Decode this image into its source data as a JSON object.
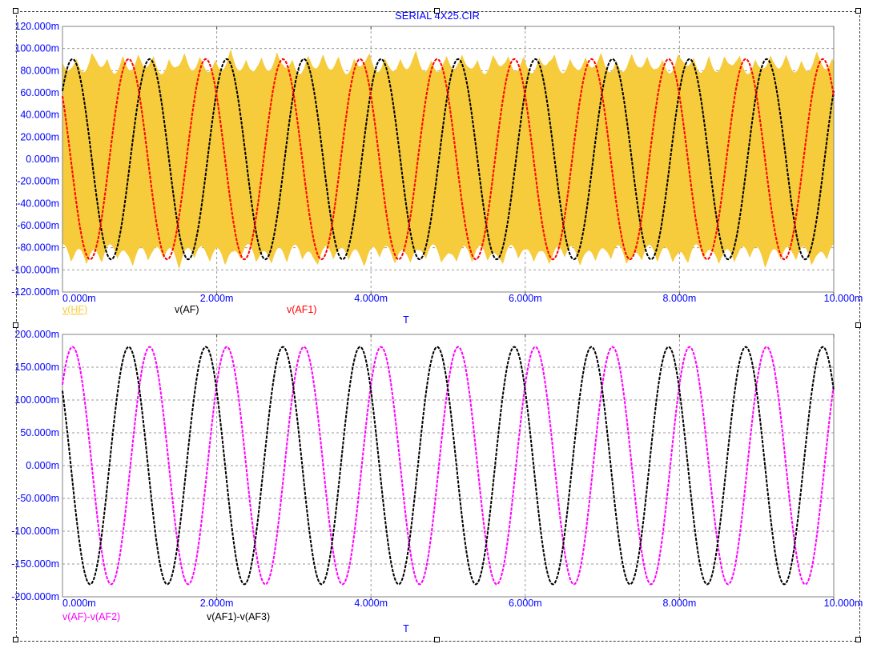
{
  "title": "SERIAL 4X25.CIR",
  "colors": {
    "label_blue": "#0000FF",
    "frame_gray": "#808080",
    "grid_gray": "#9a9a9a",
    "tick_gray": "#555555",
    "hf_yellow": "#F6CB3C",
    "background": "#ffffff"
  },
  "chart_data": [
    {
      "type": "line",
      "title": "SERIAL 4X25.CIR",
      "xlabel": "T",
      "xlim_s": [
        0,
        0.01
      ],
      "ylim_v": [
        -0.12,
        0.12
      ],
      "grid": true,
      "legend_position": "bottom",
      "x_ticks": [
        "0.000m",
        "2.000m",
        "4.000m",
        "6.000m",
        "8.000m",
        "10.000m"
      ],
      "y_ticks": [
        "120.000m",
        "100.000m",
        "80.000m",
        "60.000m",
        "40.000m",
        "20.000m",
        "0.000m",
        "-20.000m",
        "-40.000m",
        "-60.000m",
        "-80.000m",
        "-100.000m",
        "-120.000m"
      ],
      "series": [
        {
          "name": "v(HF)",
          "color": "#F6CB3C",
          "kind": "am-fill",
          "underline": true,
          "envelope_peak_v": 0.1,
          "envelope_min_v": 0.076,
          "upper_terms": [
            {
              "a": 0.0125,
              "f": 2500,
              "p": 0.3
            },
            {
              "a": 0.0065,
              "f": 850,
              "p": 0.9
            },
            {
              "a": 0.0045,
              "f": 1450,
              "p": 2.2
            }
          ],
          "lower_terms": [
            {
              "a": 0.0125,
              "f": 2500,
              "p": 1.4
            },
            {
              "a": 0.0065,
              "f": 850,
              "p": 1.4
            },
            {
              "a": 0.0045,
              "f": 1450,
              "p": 5.0
            }
          ],
          "description": "multiplexed AM carrier bundle filling -100mV..+100mV with scalloped envelope"
        },
        {
          "name": "v(AF)",
          "color": "#000000",
          "kind": "sine",
          "amplitude_v": 0.0905,
          "frequency_hz": 1000,
          "phase_rad": 0.75
        },
        {
          "name": "v(AF1)",
          "color": "#FF0000",
          "kind": "sine",
          "amplitude_v": 0.0905,
          "frequency_hz": 1000,
          "phase_rad": 2.46
        }
      ]
    },
    {
      "type": "line",
      "title": "",
      "xlabel": "T",
      "xlim_s": [
        0,
        0.01
      ],
      "ylim_v": [
        -0.2,
        0.2
      ],
      "grid": true,
      "legend_position": "bottom",
      "x_ticks": [
        "0.000m",
        "2.000m",
        "4.000m",
        "6.000m",
        "8.000m",
        "10.000m"
      ],
      "y_ticks": [
        "200.000m",
        "150.000m",
        "100.000m",
        "50.000m",
        "0.000m",
        "-50.000m",
        "-100.000m",
        "-150.000m",
        "-200.000m"
      ],
      "series": [
        {
          "name": "v(AF)-v(AF2)",
          "color": "#FF00FF",
          "kind": "sine",
          "amplitude_v": 0.181,
          "frequency_hz": 1000,
          "phase_rad": 0.75
        },
        {
          "name": "v(AF1)-v(AF3)",
          "color": "#000000",
          "kind": "sine",
          "amplitude_v": 0.181,
          "frequency_hz": 1000,
          "phase_rad": 2.46
        }
      ]
    }
  ]
}
